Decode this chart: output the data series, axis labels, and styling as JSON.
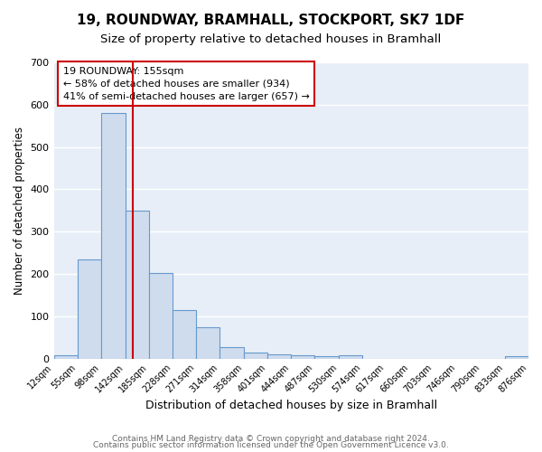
{
  "title": "19, ROUNDWAY, BRAMHALL, STOCKPORT, SK7 1DF",
  "subtitle": "Size of property relative to detached houses in Bramhall",
  "xlabel": "Distribution of detached houses by size in Bramhall",
  "ylabel": "Number of detached properties",
  "bar_edges": [
    12,
    55,
    98,
    142,
    185,
    228,
    271,
    314,
    358,
    401,
    444,
    487,
    530,
    574,
    617,
    660,
    703,
    746,
    790,
    833,
    876
  ],
  "bar_heights": [
    7,
    235,
    580,
    350,
    202,
    115,
    73,
    27,
    14,
    9,
    7,
    5,
    7,
    0,
    0,
    0,
    0,
    0,
    0,
    5
  ],
  "bar_color": "#cfdcee",
  "bar_edge_color": "#6699cc",
  "vline_x": 155,
  "vline_color": "#cc0000",
  "annotation_line1": "19 ROUNDWAY: 155sqm",
  "annotation_line2": "← 58% of detached houses are smaller (934)",
  "annotation_line3": "41% of semi-detached houses are larger (657) →",
  "annotation_box_color": "#ffffff",
  "annotation_box_edge_color": "#cc0000",
  "ylim": [
    0,
    700
  ],
  "yticks": [
    0,
    100,
    200,
    300,
    400,
    500,
    600,
    700
  ],
  "tick_labels": [
    "12sqm",
    "55sqm",
    "98sqm",
    "142sqm",
    "185sqm",
    "228sqm",
    "271sqm",
    "314sqm",
    "358sqm",
    "401sqm",
    "444sqm",
    "487sqm",
    "530sqm",
    "574sqm",
    "617sqm",
    "660sqm",
    "703sqm",
    "746sqm",
    "790sqm",
    "833sqm",
    "876sqm"
  ],
  "plot_bg_color": "#e8eef7",
  "fig_bg_color": "#ffffff",
  "footer_text1": "Contains HM Land Registry data © Crown copyright and database right 2024.",
  "footer_text2": "Contains public sector information licensed under the Open Government Licence v3.0.",
  "grid_color": "#ffffff",
  "title_fontsize": 11,
  "subtitle_fontsize": 9.5,
  "xlabel_fontsize": 9,
  "ylabel_fontsize": 8.5,
  "tick_fontsize": 7,
  "ytick_fontsize": 8,
  "annotation_fontsize": 8,
  "footer_fontsize": 6.5,
  "footer_color": "#666666"
}
